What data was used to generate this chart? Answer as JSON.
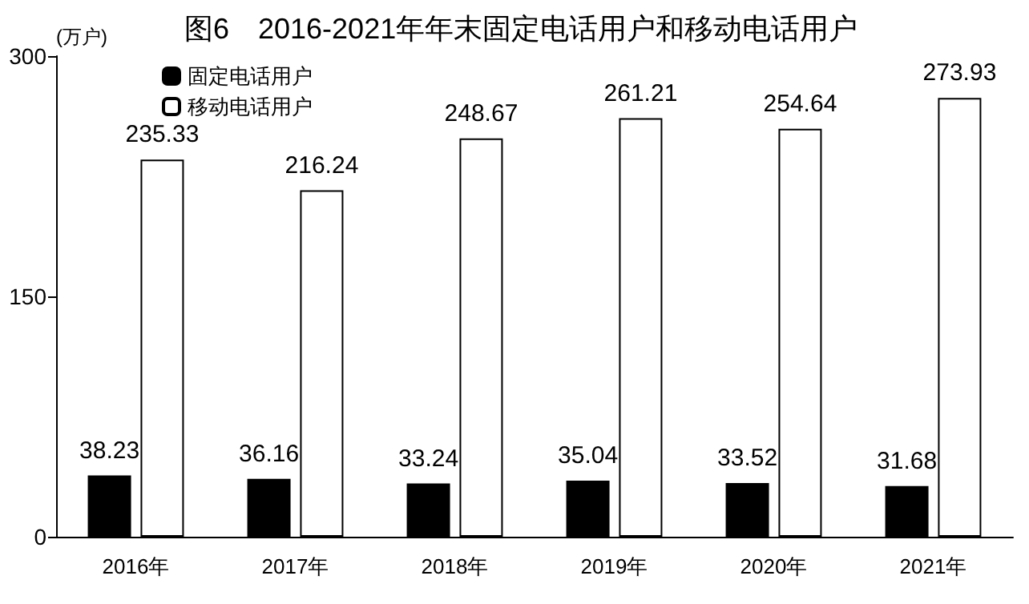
{
  "chart_data": {
    "type": "bar",
    "title": "图6　2016-2021年年末固定电话用户和移动电话用户",
    "ylabel": "(万户)",
    "categories": [
      "2016年",
      "2017年",
      "2018年",
      "2019年",
      "2020年",
      "2021年"
    ],
    "series": [
      {
        "name": "固定电话用户",
        "color": "#000000",
        "values": [
          38.23,
          36.16,
          33.24,
          35.04,
          33.52,
          31.68
        ]
      },
      {
        "name": "移动电话用户",
        "color": "#ffffff",
        "values": [
          235.33,
          216.24,
          248.67,
          261.21,
          254.64,
          273.93
        ]
      }
    ],
    "ylim": [
      0,
      300
    ],
    "yticks": [
      0,
      150,
      300
    ],
    "grid": false,
    "legend": "top left",
    "data_labels": true
  }
}
